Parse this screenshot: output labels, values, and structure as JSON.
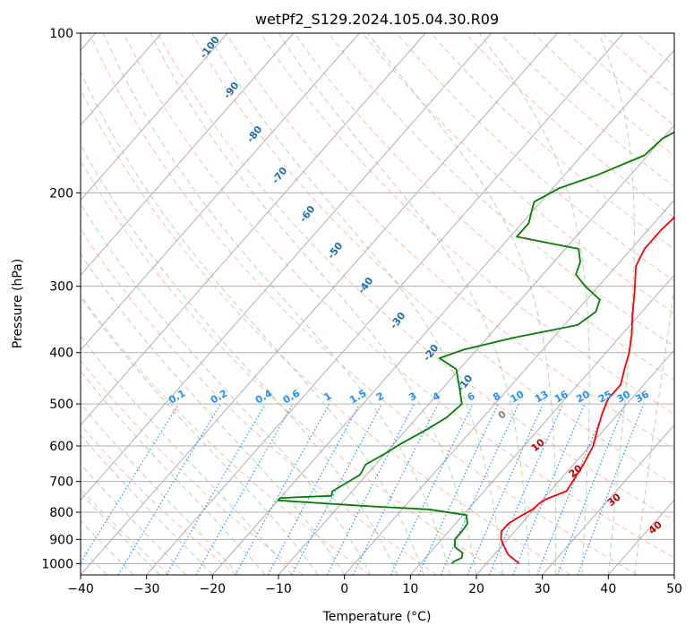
{
  "chart_data": {
    "type": "line",
    "title": "wetPf2_S129.2024.105.04.30.R09",
    "xlabel": "Temperature (°C)",
    "ylabel": "Pressure (hPa)",
    "xlim": [
      -40,
      50
    ],
    "ylim": [
      1050,
      100
    ],
    "y_scale": "log",
    "x_ticks": [
      "−40",
      "−30",
      "−20",
      "−10",
      "0",
      "10",
      "20",
      "30",
      "40",
      "50"
    ],
    "x_tick_values": [
      -40,
      -30,
      -20,
      -10,
      0,
      10,
      20,
      30,
      40,
      50
    ],
    "y_ticks": [
      "1000",
      "900",
      "800",
      "700",
      "600",
      "500",
      "400",
      "300",
      "200",
      "100"
    ],
    "y_tick_values": [
      1000,
      900,
      800,
      700,
      600,
      500,
      400,
      300,
      200,
      100
    ],
    "grid": true,
    "colors": {
      "temperature": "#ff0000",
      "dewpoint": "#008000",
      "isotherm": "#b0b0b0",
      "dry_adiabat": "#ffa07a",
      "moist_adiabat": "#90c890",
      "mixing_ratio": "#1e90ff",
      "isotherm_label": "#1f6fb0",
      "moist_label": "#c00000",
      "zero_label": "#808080"
    },
    "series": [
      {
        "role": "temperature",
        "points": [
          [
            25.0,
            1000
          ],
          [
            23.5,
            980
          ],
          [
            22.0,
            960
          ],
          [
            20.5,
            930
          ],
          [
            19.0,
            900
          ],
          [
            18.0,
            870
          ],
          [
            18.0,
            840
          ],
          [
            18.8,
            815
          ],
          [
            19.8,
            790
          ],
          [
            20.0,
            770
          ],
          [
            20.5,
            755
          ],
          [
            22.5,
            730
          ],
          [
            22.0,
            690
          ],
          [
            21.5,
            650
          ],
          [
            20.5,
            600
          ],
          [
            19.0,
            560
          ],
          [
            17.5,
            520
          ],
          [
            16.5,
            490
          ],
          [
            16.5,
            460
          ],
          [
            15.0,
            430
          ],
          [
            13.5,
            400
          ],
          [
            11.5,
            370
          ],
          [
            9.0,
            340
          ],
          [
            6.0,
            305
          ],
          [
            3.0,
            275
          ],
          [
            2.0,
            255
          ],
          [
            2.0,
            235
          ],
          [
            2.5,
            215
          ],
          [
            3.0,
            195
          ],
          [
            3.0,
            180
          ],
          [
            4.0,
            165
          ],
          [
            6.0,
            150
          ],
          [
            8.5,
            135
          ],
          [
            10.5,
            122
          ],
          [
            11.5,
            113
          ],
          [
            12.0,
            106
          ],
          [
            12.5,
            100
          ]
        ]
      },
      {
        "role": "dewpoint",
        "points": [
          [
            14.8,
            1000
          ],
          [
            14.8,
            990
          ],
          [
            15.5,
            975
          ],
          [
            15.0,
            955
          ],
          [
            13.0,
            930
          ],
          [
            12.0,
            900
          ],
          [
            12.0,
            870
          ],
          [
            11.8,
            840
          ],
          [
            10.5,
            810
          ],
          [
            4.0,
            790
          ],
          [
            -5.0,
            780
          ],
          [
            -20.0,
            760
          ],
          [
            -20.0,
            752
          ],
          [
            -12.5,
            745
          ],
          [
            -13.0,
            730
          ],
          [
            -12.0,
            705
          ],
          [
            -11.0,
            680
          ],
          [
            -11.5,
            650
          ],
          [
            -10.0,
            620
          ],
          [
            -9.0,
            595
          ],
          [
            -7.0,
            560
          ],
          [
            -5.5,
            530
          ],
          [
            -5.0,
            500
          ],
          [
            -8.0,
            460
          ],
          [
            -10.5,
            430
          ],
          [
            -14.5,
            410
          ],
          [
            -12.0,
            395
          ],
          [
            -6.0,
            375
          ],
          [
            2.0,
            355
          ],
          [
            3.0,
            335
          ],
          [
            2.0,
            318
          ],
          [
            -2.0,
            300
          ],
          [
            -5.0,
            285
          ],
          [
            -6.0,
            270
          ],
          [
            -8.0,
            255
          ],
          [
            -19.0,
            242
          ],
          [
            -19.0,
            228
          ],
          [
            -20.0,
            218
          ],
          [
            -21.0,
            208
          ],
          [
            -19.0,
            196
          ],
          [
            -15.0,
            185
          ],
          [
            -10.5,
            170
          ],
          [
            -10.0,
            158
          ],
          [
            -7.0,
            145
          ],
          [
            -4.0,
            132
          ],
          [
            -3.0,
            120
          ],
          [
            -2.5,
            110
          ],
          [
            1.0,
            100
          ]
        ]
      }
    ],
    "annotations": {
      "isotherm_labels": [
        "-100",
        "-90",
        "-80",
        "-70",
        "-60",
        "-50",
        "-40",
        "-30",
        "-20",
        "-10"
      ],
      "mixing_ratio_labels": [
        "0.1",
        "0.2",
        "0.4",
        "0.6",
        "1",
        "1.5",
        "2",
        "3",
        "4",
        "6",
        "8",
        "10",
        "13",
        "16",
        "20",
        "25",
        "30",
        "36"
      ],
      "moist_adiabat_labels": [
        "0",
        "10",
        "20",
        "30",
        "40"
      ]
    }
  }
}
